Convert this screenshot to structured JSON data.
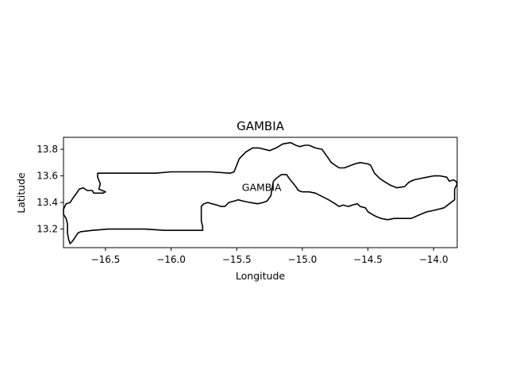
{
  "chart_data": {
    "type": "map",
    "title": "GAMBIA",
    "xlabel": "Longitude",
    "ylabel": "Latitude",
    "xlim": [
      -16.82,
      -13.82
    ],
    "ylim": [
      13.06,
      13.89
    ],
    "x_ticks": [
      -16.5,
      -16.0,
      -15.5,
      -15.0,
      -14.5,
      -14.0
    ],
    "x_tick_labels": [
      "−16.5",
      "−16.0",
      "−15.5",
      "−15.0",
      "−14.5",
      "−14.0"
    ],
    "y_ticks": [
      13.2,
      13.4,
      13.6,
      13.8
    ],
    "y_tick_labels": [
      "13.2",
      "13.4",
      "13.6",
      "13.8"
    ],
    "grid": false,
    "annotations": [
      {
        "text": "GAMBIA",
        "lon": -15.31,
        "lat": 13.51
      }
    ],
    "outline_color": "#000000",
    "boundary": [
      [
        -16.82,
        13.35
      ],
      [
        -16.8,
        13.39
      ],
      [
        -16.77,
        13.4
      ],
      [
        -16.75,
        13.43
      ],
      [
        -16.72,
        13.47
      ],
      [
        -16.7,
        13.5
      ],
      [
        -16.67,
        13.51
      ],
      [
        -16.64,
        13.49
      ],
      [
        -16.6,
        13.49
      ],
      [
        -16.59,
        13.47
      ],
      [
        -16.52,
        13.47
      ],
      [
        -16.5,
        13.48
      ],
      [
        -16.55,
        13.5
      ],
      [
        -16.54,
        13.54
      ],
      [
        -16.56,
        13.59
      ],
      [
        -16.56,
        13.62
      ],
      [
        -16.54,
        13.62
      ],
      [
        -16.12,
        13.62
      ],
      [
        -16.0,
        13.63
      ],
      [
        -15.8,
        13.63
      ],
      [
        -15.7,
        13.63
      ],
      [
        -15.55,
        13.62
      ],
      [
        -15.52,
        13.63
      ],
      [
        -15.5,
        13.68
      ],
      [
        -15.48,
        13.73
      ],
      [
        -15.43,
        13.78
      ],
      [
        -15.38,
        13.81
      ],
      [
        -15.33,
        13.81
      ],
      [
        -15.25,
        13.79
      ],
      [
        -15.2,
        13.81
      ],
      [
        -15.15,
        13.84
      ],
      [
        -15.09,
        13.85
      ],
      [
        -15.05,
        13.83
      ],
      [
        -15.02,
        13.82
      ],
      [
        -14.98,
        13.83
      ],
      [
        -14.95,
        13.83
      ],
      [
        -14.9,
        13.81
      ],
      [
        -14.85,
        13.8
      ],
      [
        -14.8,
        13.73
      ],
      [
        -14.78,
        13.7
      ],
      [
        -14.72,
        13.66
      ],
      [
        -14.68,
        13.66
      ],
      [
        -14.6,
        13.69
      ],
      [
        -14.56,
        13.7
      ],
      [
        -14.5,
        13.69
      ],
      [
        -14.48,
        13.68
      ],
      [
        -14.45,
        13.62
      ],
      [
        -14.41,
        13.58
      ],
      [
        -14.38,
        13.56
      ],
      [
        -14.33,
        13.53
      ],
      [
        -14.28,
        13.51
      ],
      [
        -14.22,
        13.52
      ],
      [
        -14.19,
        13.55
      ],
      [
        -14.15,
        13.57
      ],
      [
        -14.1,
        13.58
      ],
      [
        -14.05,
        13.59
      ],
      [
        -14.0,
        13.6
      ],
      [
        -13.95,
        13.6
      ],
      [
        -13.9,
        13.59
      ],
      [
        -13.88,
        13.56
      ],
      [
        -13.85,
        13.57
      ],
      [
        -13.83,
        13.56
      ],
      [
        -13.82,
        13.54
      ],
      [
        -13.84,
        13.5
      ],
      [
        -13.84,
        13.42
      ],
      [
        -13.88,
        13.39
      ],
      [
        -13.92,
        13.36
      ],
      [
        -14.0,
        13.34
      ],
      [
        -14.05,
        13.33
      ],
      [
        -14.1,
        13.31
      ],
      [
        -14.17,
        13.28
      ],
      [
        -14.3,
        13.28
      ],
      [
        -14.35,
        13.27
      ],
      [
        -14.4,
        13.28
      ],
      [
        -14.45,
        13.3
      ],
      [
        -14.5,
        13.33
      ],
      [
        -14.52,
        13.36
      ],
      [
        -14.56,
        13.37
      ],
      [
        -14.58,
        13.39
      ],
      [
        -14.62,
        13.38
      ],
      [
        -14.65,
        13.37
      ],
      [
        -14.69,
        13.38
      ],
      [
        -14.72,
        13.37
      ],
      [
        -14.75,
        13.39
      ],
      [
        -14.8,
        13.42
      ],
      [
        -14.86,
        13.45
      ],
      [
        -14.9,
        13.47
      ],
      [
        -14.95,
        13.48
      ],
      [
        -15.0,
        13.48
      ],
      [
        -15.03,
        13.49
      ],
      [
        -15.05,
        13.52
      ],
      [
        -15.1,
        13.58
      ],
      [
        -15.12,
        13.61
      ],
      [
        -15.16,
        13.61
      ],
      [
        -15.2,
        13.58
      ],
      [
        -15.22,
        13.56
      ],
      [
        -15.23,
        13.51
      ],
      [
        -15.24,
        13.45
      ],
      [
        -15.27,
        13.41
      ],
      [
        -15.3,
        13.4
      ],
      [
        -15.34,
        13.39
      ],
      [
        -15.4,
        13.4
      ],
      [
        -15.45,
        13.41
      ],
      [
        -15.49,
        13.42
      ],
      [
        -15.52,
        13.41
      ],
      [
        -15.56,
        13.4
      ],
      [
        -15.59,
        13.37
      ],
      [
        -15.62,
        13.37
      ],
      [
        -15.65,
        13.38
      ],
      [
        -15.69,
        13.39
      ],
      [
        -15.72,
        13.4
      ],
      [
        -15.75,
        13.39
      ],
      [
        -15.77,
        13.37
      ],
      [
        -15.77,
        13.26
      ],
      [
        -15.76,
        13.22
      ],
      [
        -15.76,
        13.19
      ],
      [
        -15.9,
        13.19
      ],
      [
        -16.05,
        13.19
      ],
      [
        -16.2,
        13.2
      ],
      [
        -16.48,
        13.2
      ],
      [
        -16.6,
        13.19
      ],
      [
        -16.69,
        13.18
      ],
      [
        -16.71,
        13.17
      ],
      [
        -16.73,
        13.14
      ],
      [
        -16.75,
        13.11
      ],
      [
        -16.77,
        13.09
      ],
      [
        -16.78,
        13.12
      ],
      [
        -16.79,
        13.17
      ],
      [
        -16.79,
        13.24
      ],
      [
        -16.8,
        13.28
      ],
      [
        -16.82,
        13.31
      ],
      [
        -16.82,
        13.35
      ]
    ]
  }
}
